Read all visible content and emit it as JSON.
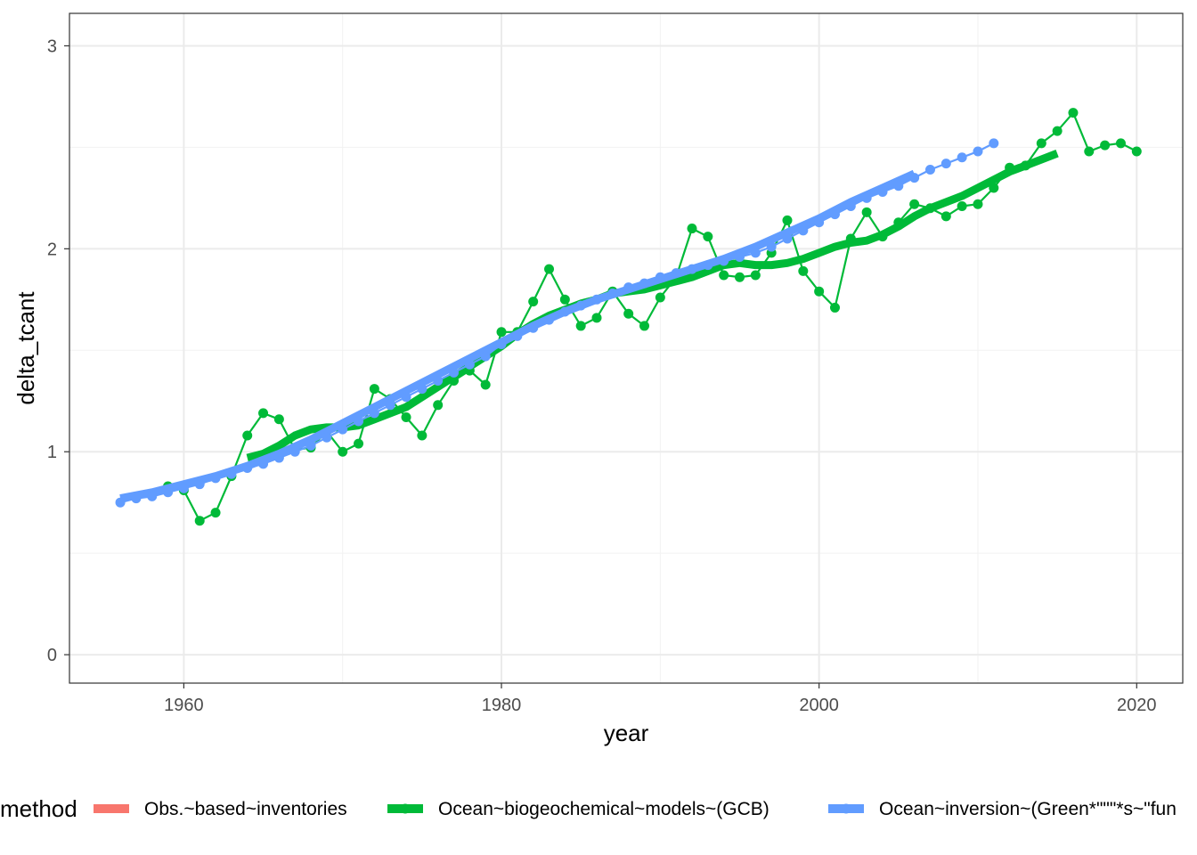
{
  "chart_data": {
    "type": "line",
    "xlabel": "year",
    "ylabel": "delta_tcant",
    "xlim": [
      1952.8,
      2022.9
    ],
    "ylim": [
      -0.14,
      3.16
    ],
    "x_ticks": [
      "1960",
      "1980",
      "2000",
      "2020"
    ],
    "y_ticks": [
      "0",
      "1",
      "2",
      "3"
    ],
    "grid": true,
    "legend": {
      "title": "method",
      "position": "bottom",
      "entries": [
        "Obs.~based~inventories",
        "Ocean~biogeochemical~models~(GCB)",
        "Ocean~inversion~(Green*\"\"\"*s~\"fun"
      ]
    },
    "series": [
      {
        "name": "Ocean~biogeochemical~models~(GCB)",
        "color": "#00ba38",
        "style": "points+line",
        "x": [
          1959,
          1960,
          1961,
          1962,
          1963,
          1964,
          1965,
          1966,
          1967,
          1968,
          1969,
          1970,
          1971,
          1972,
          1973,
          1974,
          1975,
          1976,
          1977,
          1978,
          1979,
          1980,
          1981,
          1982,
          1983,
          1984,
          1985,
          1986,
          1987,
          1988,
          1989,
          1990,
          1991,
          1992,
          1993,
          1994,
          1995,
          1996,
          1997,
          1998,
          1999,
          2000,
          2001,
          2002,
          2003,
          2004,
          2005,
          2006,
          2007,
          2008,
          2009,
          2010,
          2011,
          2012,
          2013,
          2014,
          2015,
          2016,
          2017,
          2018,
          2019,
          2020
        ],
        "y": [
          0.83,
          0.81,
          0.66,
          0.7,
          0.88,
          1.08,
          1.19,
          1.16,
          1.01,
          1.02,
          1.1,
          1.0,
          1.04,
          1.31,
          1.26,
          1.17,
          1.08,
          1.23,
          1.35,
          1.4,
          1.33,
          1.59,
          1.59,
          1.74,
          1.9,
          1.75,
          1.62,
          1.66,
          1.79,
          1.68,
          1.62,
          1.76,
          1.86,
          2.1,
          2.06,
          1.87,
          1.86,
          1.87,
          1.98,
          2.14,
          1.89,
          1.79,
          1.71,
          2.05,
          2.18,
          2.06,
          2.13,
          2.22,
          2.2,
          2.16,
          2.21,
          2.22,
          2.3,
          2.4,
          2.41,
          2.52,
          2.58,
          2.67,
          2.48,
          2.51,
          2.52,
          2.48
        ]
      },
      {
        "name": "Ocean~biogeochemical~models~(GCB)",
        "color": "#00ba38",
        "style": "smooth",
        "x": [
          1964,
          1965,
          1966,
          1967,
          1968,
          1969,
          1970,
          1971,
          1972,
          1973,
          1974,
          1975,
          1976,
          1977,
          1978,
          1979,
          1980,
          1981,
          1982,
          1983,
          1984,
          1985,
          1986,
          1987,
          1988,
          1989,
          1990,
          1991,
          1992,
          1993,
          1994,
          1995,
          1996,
          1997,
          1998,
          1999,
          2000,
          2001,
          2002,
          2003,
          2004,
          2005,
          2006,
          2007,
          2008,
          2009,
          2010,
          2011,
          2012,
          2013,
          2014,
          2015
        ],
        "y": [
          0.97,
          0.99,
          1.03,
          1.08,
          1.11,
          1.12,
          1.12,
          1.13,
          1.16,
          1.19,
          1.22,
          1.27,
          1.32,
          1.37,
          1.42,
          1.47,
          1.52,
          1.58,
          1.63,
          1.67,
          1.7,
          1.73,
          1.75,
          1.78,
          1.79,
          1.8,
          1.82,
          1.84,
          1.86,
          1.89,
          1.92,
          1.93,
          1.92,
          1.92,
          1.93,
          1.95,
          1.98,
          2.01,
          2.03,
          2.04,
          2.07,
          2.11,
          2.16,
          2.2,
          2.23,
          2.26,
          2.3,
          2.34,
          2.38,
          2.41,
          2.44,
          2.47
        ]
      },
      {
        "name": "Ocean~inversion~(Green*\"\"\"*s~\"fun",
        "color": "#619cff",
        "style": "points+line",
        "x": [
          1956,
          1957,
          1958,
          1959,
          1960,
          1961,
          1962,
          1963,
          1964,
          1965,
          1966,
          1967,
          1968,
          1969,
          1970,
          1971,
          1972,
          1973,
          1974,
          1975,
          1976,
          1977,
          1978,
          1979,
          1980,
          1981,
          1982,
          1983,
          1984,
          1985,
          1986,
          1987,
          1988,
          1989,
          1990,
          1991,
          1992,
          1993,
          1994,
          1995,
          1996,
          1997,
          1998,
          1999,
          2000,
          2001,
          2002,
          2003,
          2004,
          2005,
          2006,
          2007,
          2008,
          2009,
          2010,
          2011
        ],
        "y": [
          0.75,
          0.77,
          0.78,
          0.8,
          0.82,
          0.84,
          0.87,
          0.89,
          0.92,
          0.94,
          0.97,
          1.0,
          1.03,
          1.07,
          1.11,
          1.15,
          1.19,
          1.23,
          1.27,
          1.31,
          1.35,
          1.39,
          1.43,
          1.47,
          1.53,
          1.57,
          1.61,
          1.65,
          1.69,
          1.72,
          1.75,
          1.78,
          1.81,
          1.83,
          1.86,
          1.88,
          1.9,
          1.92,
          1.94,
          1.96,
          1.98,
          2.01,
          2.05,
          2.09,
          2.13,
          2.17,
          2.21,
          2.25,
          2.28,
          2.31,
          2.35,
          2.39,
          2.42,
          2.45,
          2.48,
          2.52
        ]
      },
      {
        "name": "Ocean~inversion~(Green*\"\"\"*s~\"fun",
        "color": "#619cff",
        "style": "smooth",
        "x": [
          1956,
          1958,
          1960,
          1962,
          1964,
          1966,
          1968,
          1970,
          1972,
          1974,
          1976,
          1978,
          1980,
          1982,
          1984,
          1986,
          1988,
          1990,
          1992,
          1994,
          1996,
          1998,
          2000,
          2002,
          2004,
          2006
        ],
        "y": [
          0.77,
          0.8,
          0.84,
          0.88,
          0.93,
          0.99,
          1.06,
          1.14,
          1.22,
          1.3,
          1.38,
          1.46,
          1.54,
          1.62,
          1.69,
          1.75,
          1.8,
          1.85,
          1.9,
          1.95,
          2.01,
          2.08,
          2.15,
          2.23,
          2.3,
          2.37
        ]
      }
    ],
    "legend_colors": [
      "#f8766d",
      "#00ba38",
      "#619cff"
    ]
  }
}
